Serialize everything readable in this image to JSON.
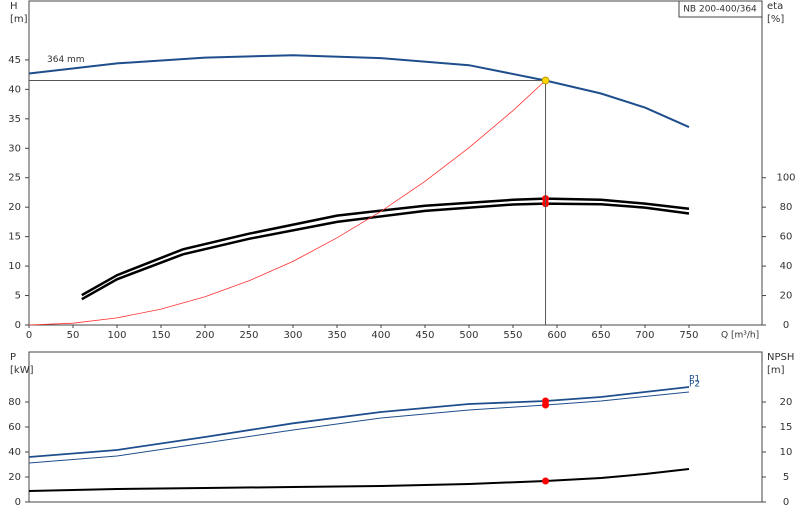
{
  "chart_data": [
    {
      "type": "line",
      "title": "NB 200-400/364",
      "xlabel": "Q [m³/h]",
      "ylabel": [
        "H",
        "[m]"
      ],
      "y2label": [
        "eta",
        "[%]"
      ],
      "xlim": [
        0,
        833
      ],
      "ylim": [
        0,
        55
      ],
      "y2lim": [
        0,
        220
      ],
      "xticks": [
        0,
        50,
        100,
        150,
        200,
        250,
        300,
        350,
        400,
        450,
        500,
        550,
        600,
        650,
        700,
        750
      ],
      "yticks": [
        0,
        5,
        10,
        15,
        20,
        25,
        30,
        35,
        40,
        45
      ],
      "y2ticks": [
        0,
        20,
        40,
        60,
        80,
        100
      ],
      "grid": false,
      "series": [
        {
          "name": "364 mm",
          "name_position": "start",
          "color": "#1f4e8c",
          "width": 2,
          "axis": "y",
          "x": [
            0,
            100,
            200,
            300,
            400,
            500,
            587,
            650,
            700,
            750
          ],
          "values": [
            42.7,
            44.4,
            45.4,
            45.8,
            45.3,
            44.1,
            41.5,
            39.3,
            36.9,
            33.6
          ]
        },
        {
          "color": "#000000",
          "width": 2.5,
          "axis": "y2",
          "x": [
            60,
            100,
            175,
            250,
            350,
            450,
            550,
            587,
            650,
            700,
            750
          ],
          "values": [
            20.3,
            33.8,
            51.4,
            62,
            74.3,
            81,
            85,
            85.8,
            85,
            82.4,
            79
          ]
        },
        {
          "color": "#000000",
          "width": 2.5,
          "axis": "y2",
          "x": [
            60,
            100,
            175,
            250,
            350,
            450,
            550,
            587,
            650,
            700,
            750
          ],
          "values": [
            17.5,
            31,
            48,
            58.5,
            70,
            77.5,
            81.8,
            82.4,
            82,
            79.7,
            75.7
          ]
        },
        {
          "color": "#ff3030",
          "width": 0.8,
          "axis": "y",
          "x": [
            0,
            50,
            100,
            150,
            200,
            250,
            300,
            350,
            400,
            450,
            500,
            550,
            587
          ],
          "values": [
            0,
            0.3,
            1.2,
            2.7,
            4.8,
            7.5,
            10.8,
            14.8,
            19.3,
            24.4,
            30.1,
            36.4,
            41.5
          ]
        },
        {
          "color": "#ff0000",
          "marker": true,
          "axis": "y2",
          "x": [
            587,
            587
          ],
          "values": [
            85.8,
            82.4
          ]
        },
        {
          "color": "#ffd700",
          "marker": true,
          "drop_lines": true,
          "axis": "y",
          "x": [
            587
          ],
          "values": [
            41.5
          ]
        }
      ]
    },
    {
      "type": "line",
      "ylabel": [
        "P",
        "[kW]"
      ],
      "y2label": [
        "NPSH",
        "[m]"
      ],
      "xlim": [
        0,
        833
      ],
      "ylim": [
        0,
        120
      ],
      "y2lim": [
        0,
        30
      ],
      "yticks": [
        0,
        20,
        40,
        60,
        80
      ],
      "y2ticks": [
        0,
        5,
        10,
        15,
        20
      ],
      "grid": false,
      "series": [
        {
          "name": "P1",
          "name_position": "end",
          "color": "#1f4e8c",
          "width": 1.8,
          "axis": "y",
          "x": [
            0,
            100,
            200,
            300,
            400,
            500,
            587,
            650,
            750
          ],
          "values": [
            36,
            41.6,
            52,
            63,
            72,
            78.4,
            80.8,
            84,
            92
          ]
        },
        {
          "name": "P2",
          "name_position": "end",
          "color": "#1f4e8c",
          "width": 1,
          "axis": "y",
          "x": [
            0,
            100,
            200,
            300,
            400,
            500,
            587,
            650,
            750
          ],
          "values": [
            31.2,
            36.8,
            47.2,
            57.6,
            67.2,
            73.6,
            77.6,
            80.8,
            88
          ]
        },
        {
          "color": "#000000",
          "width": 2,
          "axis": "y2",
          "x": [
            0,
            100,
            200,
            300,
            400,
            500,
            587,
            650,
            700,
            750
          ],
          "values": [
            2.2,
            2.6,
            2.8,
            3,
            3.2,
            3.6,
            4.2,
            4.8,
            5.6,
            6.6
          ]
        },
        {
          "color": "#ff0000",
          "marker": true,
          "axis": "y",
          "x": [
            587,
            587
          ],
          "values": [
            80.8,
            77.6
          ]
        },
        {
          "color": "#ff0000",
          "marker": true,
          "axis": "y2",
          "x": [
            587
          ],
          "values": [
            4.2
          ]
        }
      ]
    }
  ]
}
